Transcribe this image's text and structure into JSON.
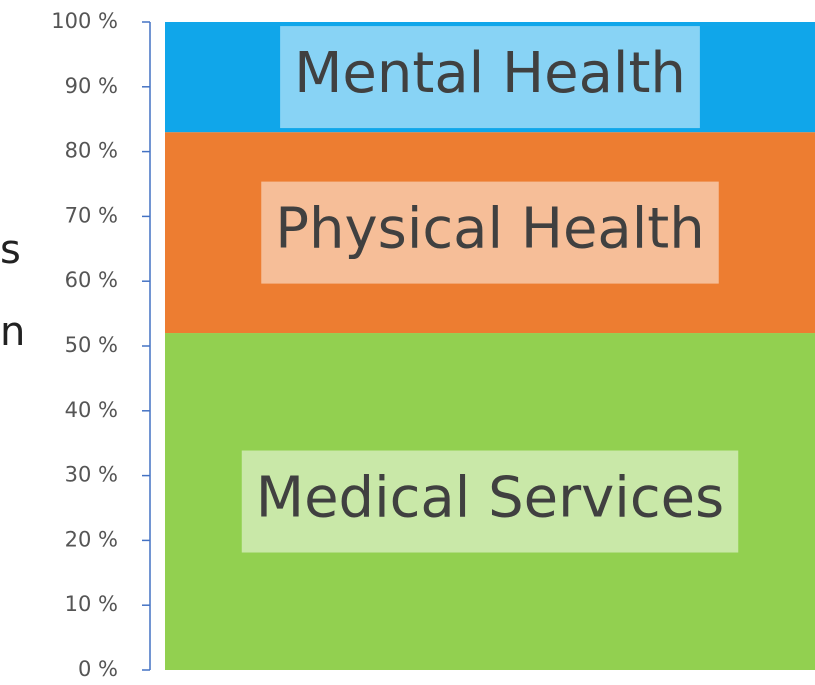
{
  "chart_data": {
    "type": "stacked_bar",
    "ylabel_fragments": [
      "s",
      "n"
    ],
    "categories": [
      null
    ],
    "series": [
      {
        "name": "Medical Services",
        "color": "#92d050",
        "values": [
          52
        ]
      },
      {
        "name": "Physical Health",
        "color": "#ed7d31",
        "values": [
          31
        ]
      },
      {
        "name": "Mental Health",
        "color": "#10a6ea",
        "values": [
          17
        ]
      }
    ],
    "ylim": [
      0,
      100
    ],
    "yticks": [
      {
        "value": 0,
        "label": "0 %"
      },
      {
        "value": 10,
        "label": "10 %"
      },
      {
        "value": 20,
        "label": "20 %"
      },
      {
        "value": 30,
        "label": "30 %"
      },
      {
        "value": 40,
        "label": "40 %"
      },
      {
        "value": 50,
        "label": "50 %"
      },
      {
        "value": 60,
        "label": "60 %"
      },
      {
        "value": 70,
        "label": "70 %"
      },
      {
        "value": 80,
        "label": "80 %"
      },
      {
        "value": 90,
        "label": "90 %"
      },
      {
        "value": 100,
        "label": "100 %"
      }
    ],
    "grid": false
  }
}
